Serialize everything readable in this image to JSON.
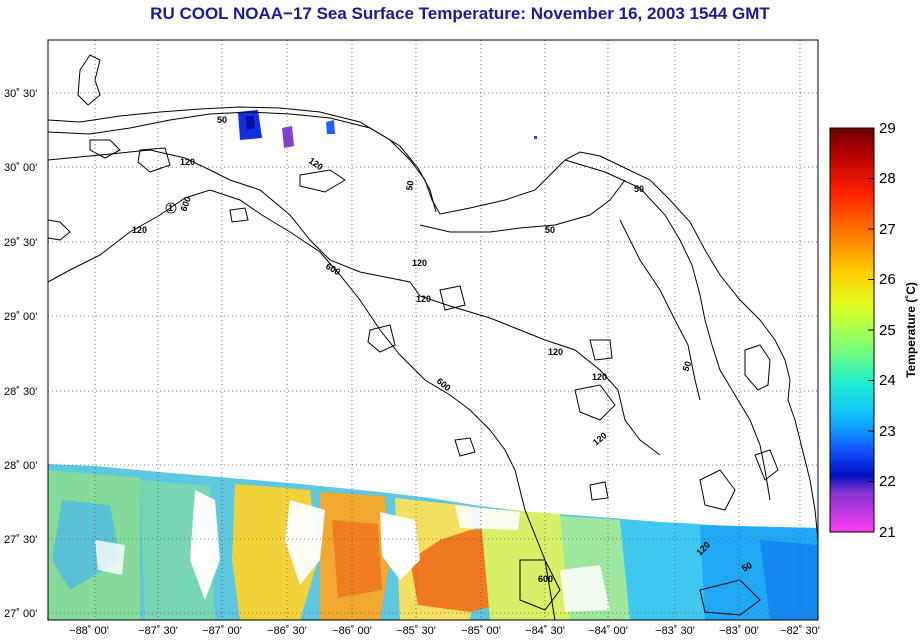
{
  "title": "RU COOL  NOAA−17  Sea Surface Temperature:  November 16, 2003 1544 GMT",
  "map": {
    "lat_labels": [
      "30˚ 30'",
      "30˚ 00'",
      "29˚ 30'",
      "29˚ 00'",
      "28˚ 30'",
      "28˚ 00'",
      "27˚ 30'",
      "27˚ 00'"
    ],
    "lon_labels": [
      "−88˚ 00'",
      "−87˚ 30'",
      "−87˚ 00'",
      "−86˚ 30'",
      "−86˚ 00'",
      "−85˚ 30'",
      "−85˚ 00'",
      "−84˚ 30'",
      "−84˚ 00'",
      "−83˚ 30'",
      "−83˚ 00'",
      "−82˚ 30'"
    ],
    "contour_labels": [
      "50",
      "120",
      "120",
      "600",
      "120",
      "600",
      "120",
      "120",
      "50",
      "50",
      "50",
      "120",
      "120",
      "120",
      "600",
      "50",
      "120",
      "50",
      "600",
      "1"
    ]
  },
  "colorbar": {
    "title": "Temperature (˚C)",
    "ticks": [
      "29",
      "28",
      "27",
      "26",
      "25",
      "24",
      "23",
      "22",
      "21"
    ],
    "min": 21,
    "max": 29
  }
}
